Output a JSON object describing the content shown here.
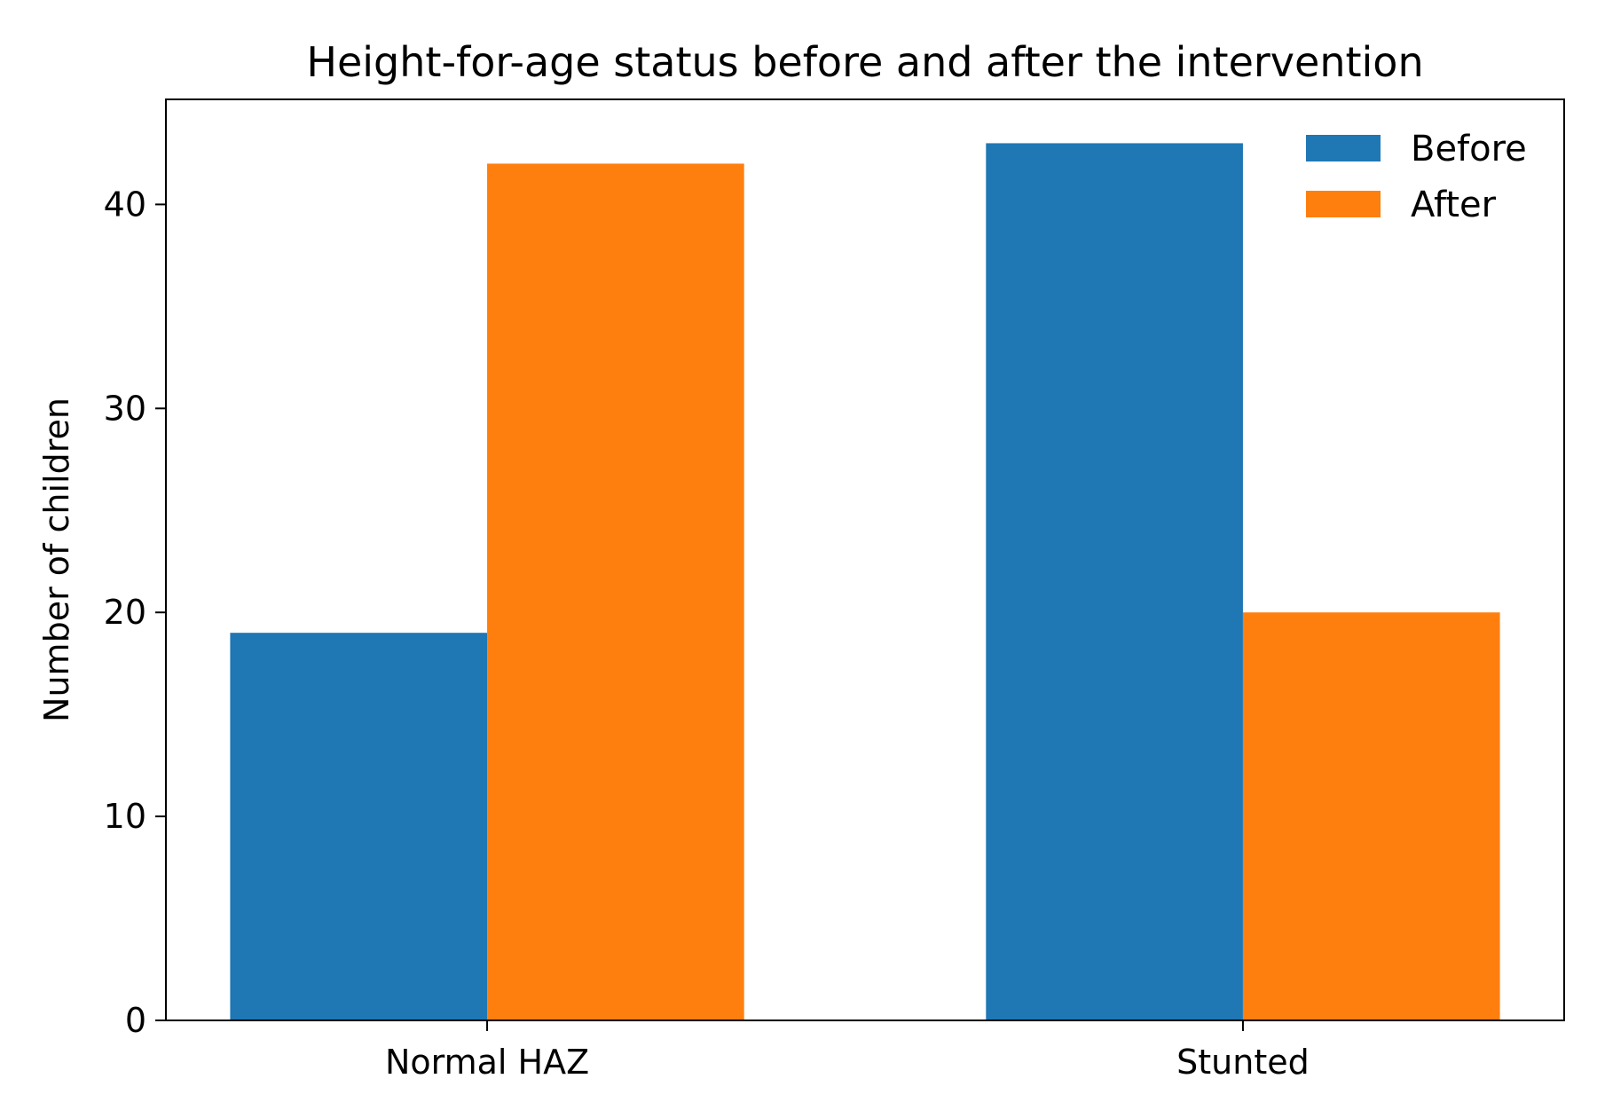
{
  "chart_data": {
    "type": "bar",
    "title": "Height-for-age status before and after the intervention",
    "xlabel": "",
    "ylabel": "Number of children",
    "categories": [
      "Normal HAZ",
      "Stunted"
    ],
    "series": [
      {
        "name": "Before",
        "values": [
          19,
          43
        ],
        "color": "#1f77b4"
      },
      {
        "name": "After",
        "values": [
          42,
          20
        ],
        "color": "#ff7f0e"
      }
    ],
    "yticks": [
      0,
      10,
      20,
      30,
      40
    ],
    "ylim": [
      0,
      45.15
    ],
    "grid": false,
    "legend_position": "top-right"
  }
}
